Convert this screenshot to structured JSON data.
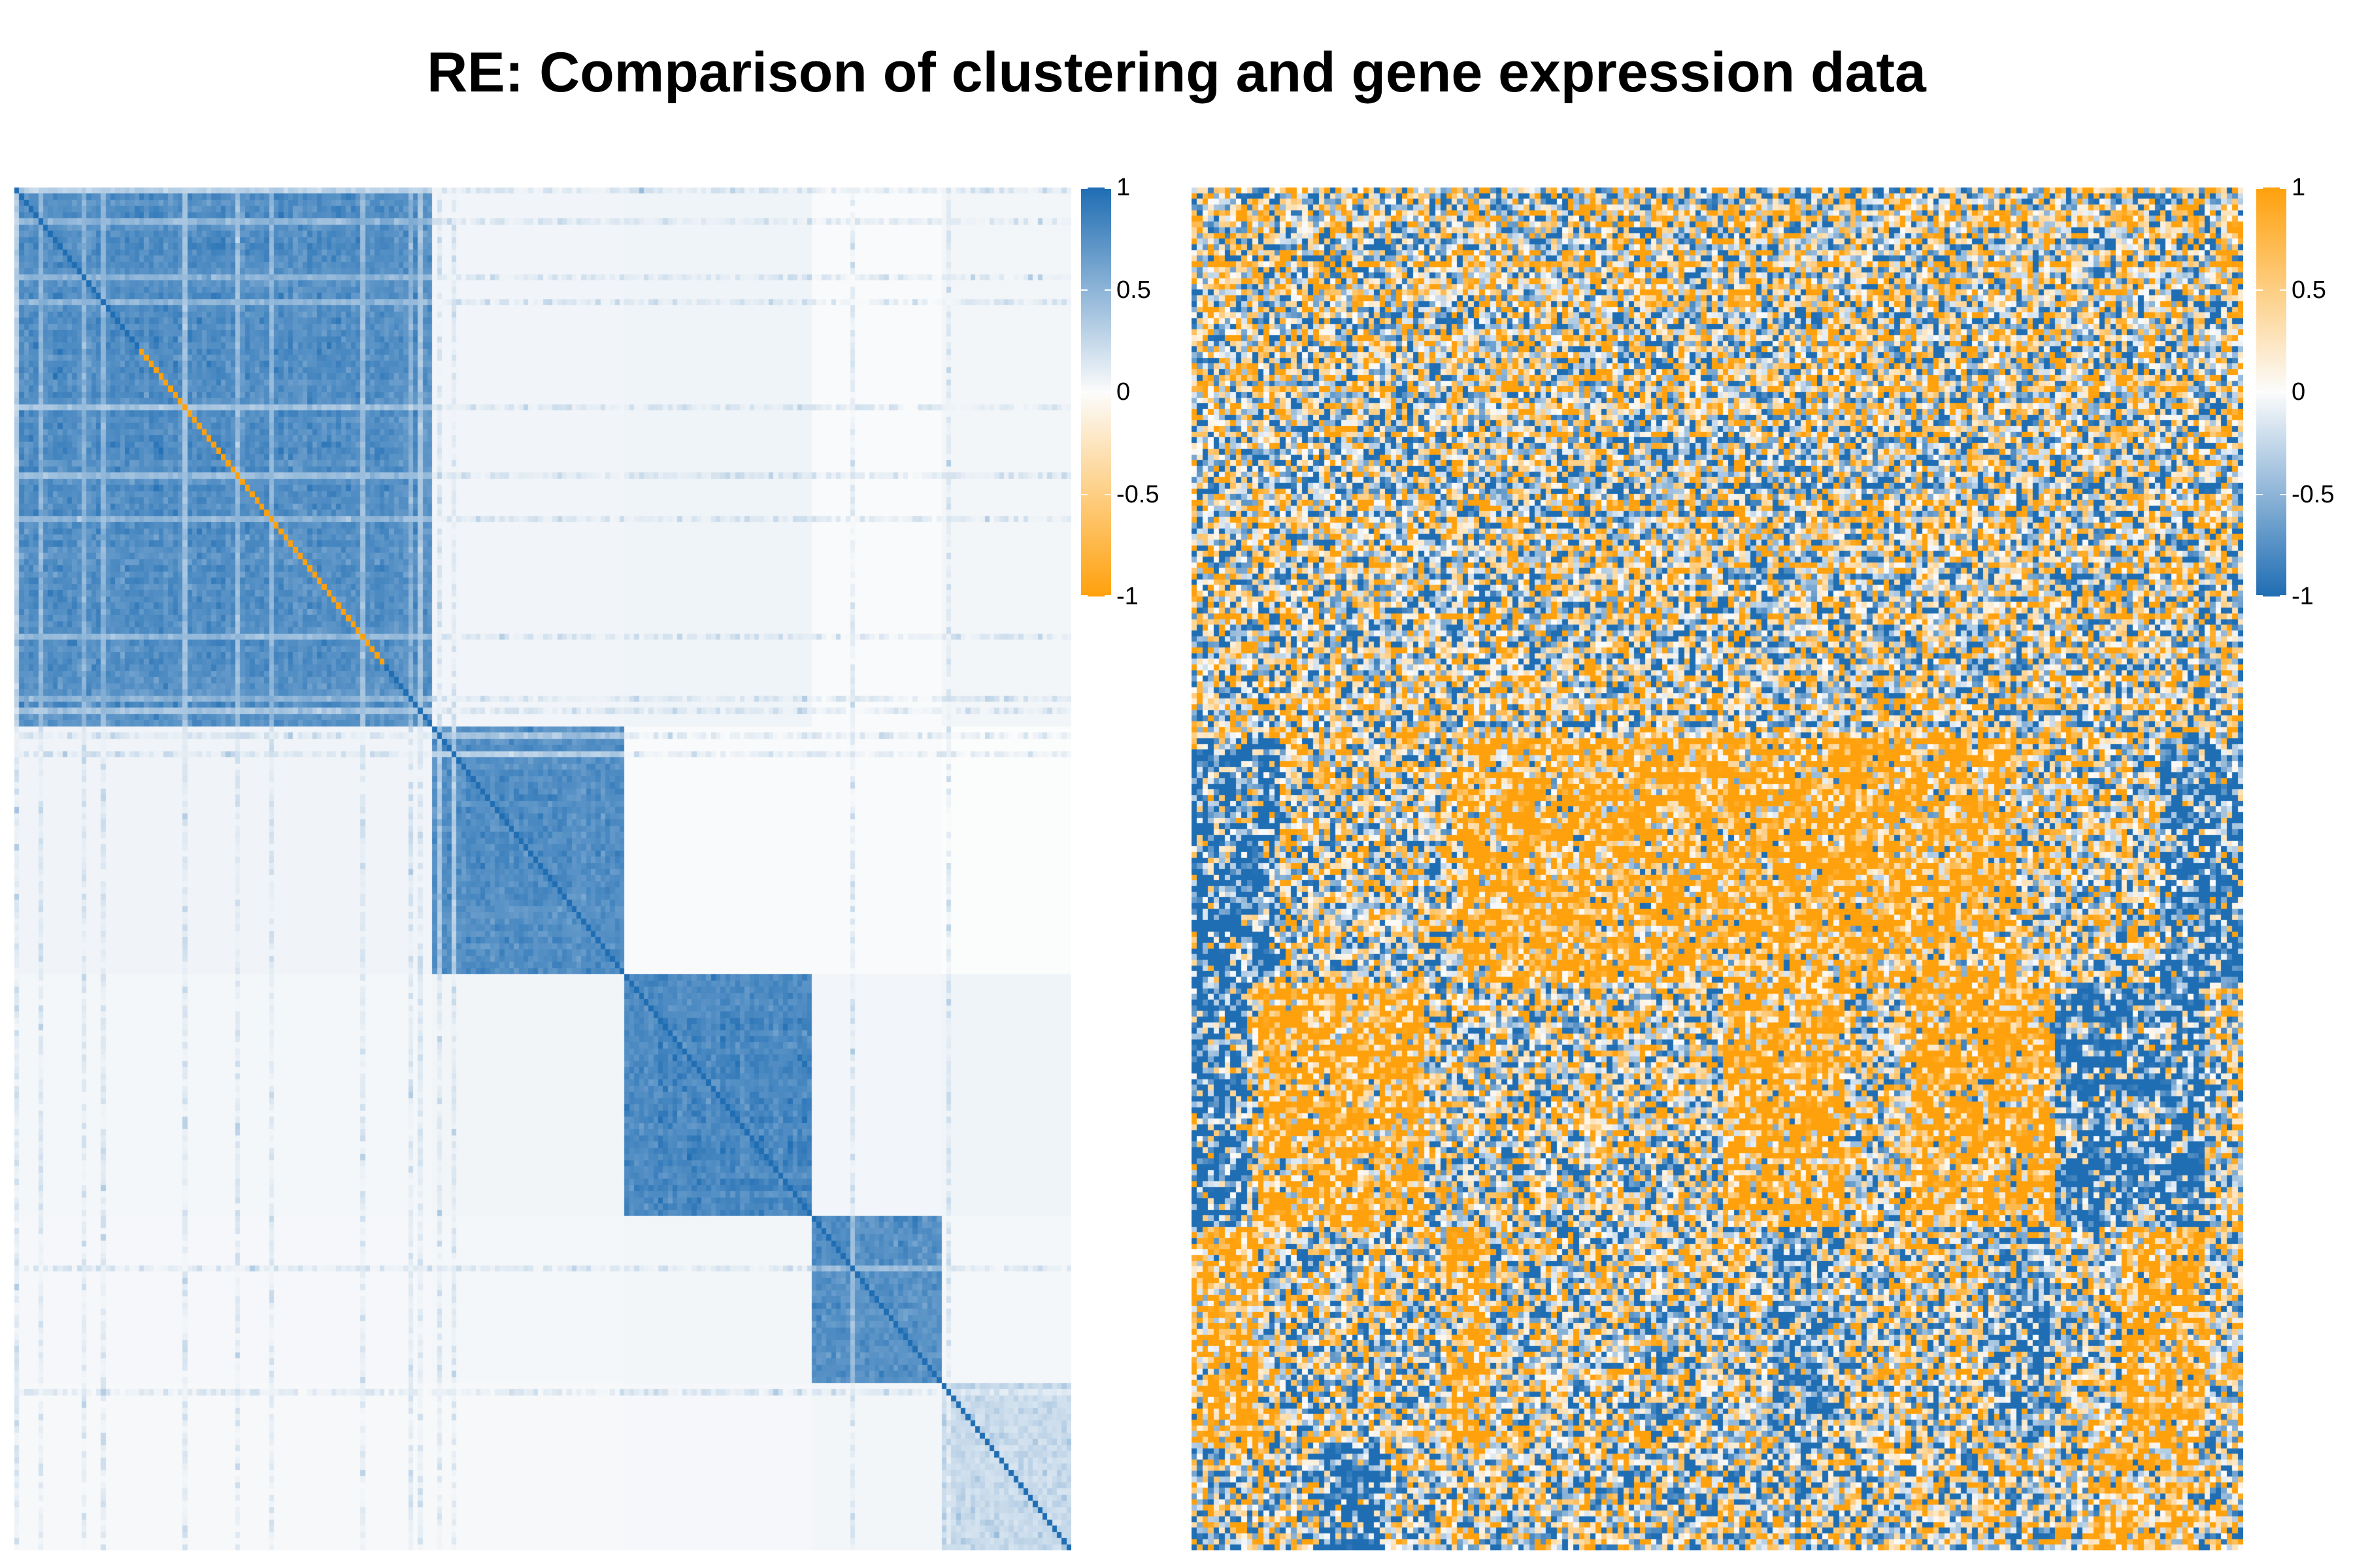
{
  "title": "RE: Comparison of clustering and gene expression data",
  "colors": {
    "blue": "#1f6db3",
    "white": "#fcfcfc",
    "orange": "#ffa10c"
  },
  "chart_data": [
    {
      "type": "heatmap",
      "name": "",
      "matrix": "correlation",
      "colorscale": [
        [
          -1,
          "#ffa10c"
        ],
        [
          0,
          "#fcfcfc"
        ],
        [
          1,
          "#1f6db3"
        ]
      ],
      "legend": {
        "ticks": [
          "1",
          "0.5",
          "0",
          "-0.5",
          "-1"
        ],
        "values": [
          1,
          0.5,
          0,
          -0.5,
          -1
        ],
        "placement": "right"
      },
      "clusters": [
        {
          "range": [
            0,
            0.395
          ],
          "value": 0.85
        },
        {
          "range": [
            0.395,
            0.577
          ],
          "value": 0.85
        },
        {
          "range": [
            0.577,
            0.753
          ],
          "value": 0.9
        },
        {
          "range": [
            0.753,
            0.877
          ],
          "value": 0.85
        },
        {
          "range": [
            0.877,
            1.0
          ],
          "value": 0.35
        }
      ],
      "diagonal_negative_segment": [
        0.12,
        0.35
      ],
      "grid": false
    },
    {
      "type": "heatmap",
      "name": "",
      "matrix": "gene expression",
      "colorscale": [
        [
          -1,
          "#1f6db3"
        ],
        [
          0,
          "#fcfcfc"
        ],
        [
          1,
          "#ffa10c"
        ]
      ],
      "legend": {
        "ticks": [
          "1",
          "0.5",
          "0",
          "-0.5",
          "-1"
        ],
        "values": [
          1,
          0.5,
          0,
          -0.5,
          -1
        ],
        "placement": "right"
      },
      "grid": false
    }
  ]
}
